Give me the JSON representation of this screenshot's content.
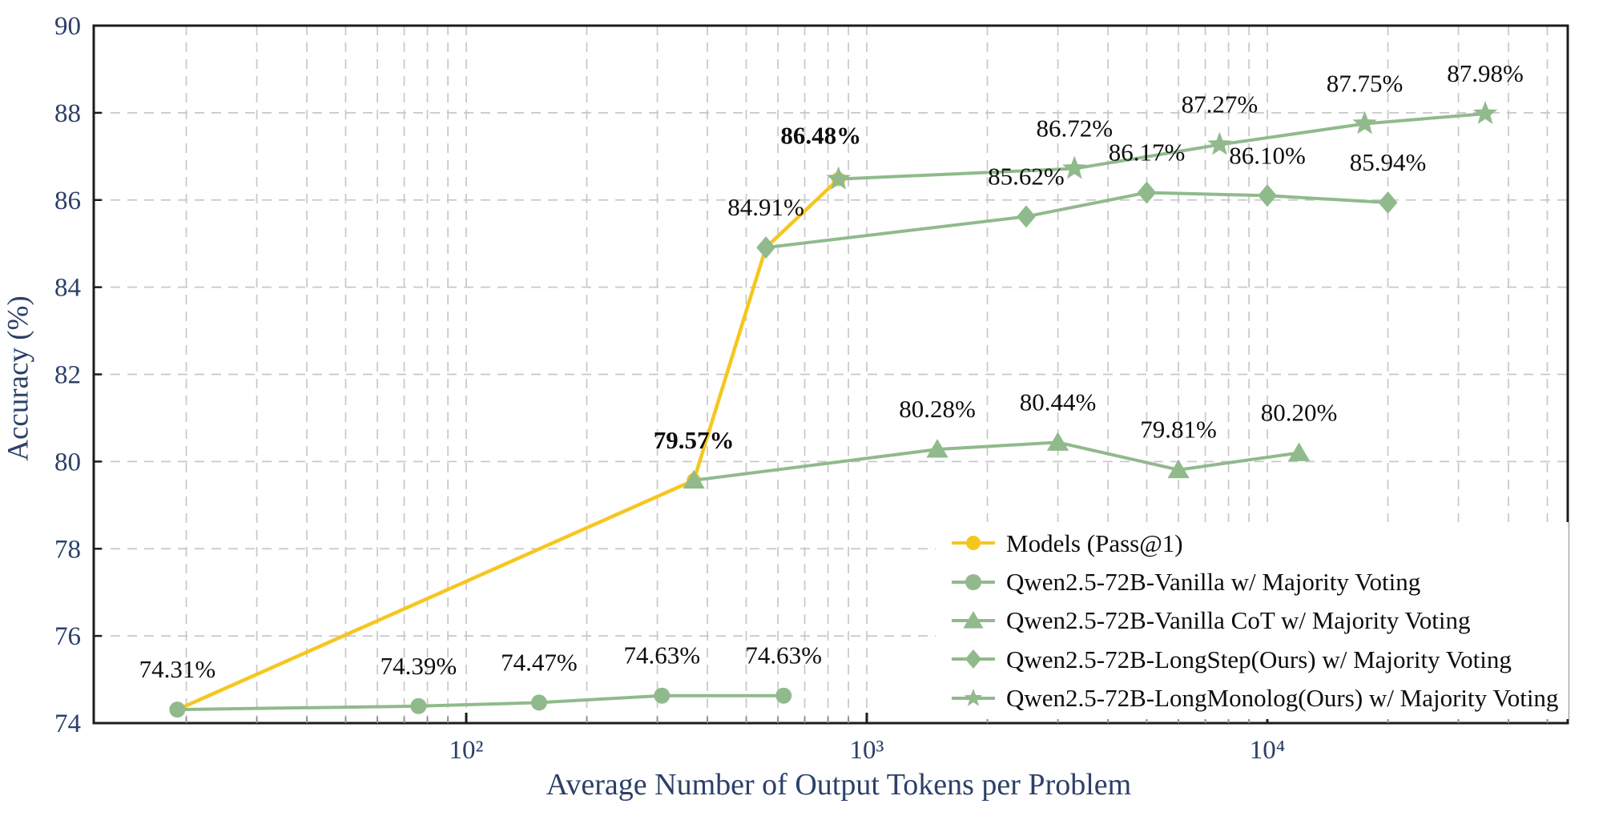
{
  "chart_data": {
    "type": "line",
    "title": "",
    "x_axis": {
      "label": "Average Number of Output Tokens per Problem",
      "scale": "log",
      "log10_range": [
        1.07,
        4.75
      ],
      "major_ticks": [
        {
          "value": 100,
          "label": "10²"
        },
        {
          "value": 1000,
          "label": "10³"
        },
        {
          "value": 10000,
          "label": "10⁴"
        }
      ]
    },
    "y_axis": {
      "label": "Accuracy (%)",
      "range": [
        74,
        90
      ],
      "ticks": [
        74,
        76,
        78,
        80,
        82,
        84,
        86,
        88,
        90
      ],
      "gridlines": [
        76,
        78,
        80,
        82,
        84,
        86,
        88
      ]
    },
    "legend": {
      "position": "lower right"
    },
    "series": [
      {
        "name": "Models (Pass@1)",
        "color": "#F5C71E",
        "marker": "circle",
        "marker_size": 9,
        "show_labels": false,
        "points": [
          {
            "x": 19,
            "y": 74.31
          },
          {
            "x": 370,
            "y": 79.57
          },
          {
            "x": 560,
            "y": 84.91
          },
          {
            "x": 850,
            "y": 86.48
          }
        ]
      },
      {
        "name": "Qwen2.5-72B-Vanilla w/ Majority Voting",
        "color": "#90BA8C",
        "marker": "circle",
        "marker_size": 10,
        "show_labels": true,
        "points": [
          {
            "x": 19,
            "y": 74.31,
            "label": "74.31%"
          },
          {
            "x": 76,
            "y": 74.39,
            "label": "74.39%"
          },
          {
            "x": 152,
            "y": 74.47,
            "label": "74.47%"
          },
          {
            "x": 308,
            "y": 74.63,
            "label": "74.63%"
          },
          {
            "x": 620,
            "y": 74.63,
            "label": "74.63%"
          }
        ]
      },
      {
        "name": "Qwen2.5-72B-Vanilla CoT w/ Majority Voting",
        "color": "#90BA8C",
        "marker": "triangle",
        "marker_size": 13,
        "show_labels": true,
        "points": [
          {
            "x": 370,
            "y": 79.57,
            "label": "79.57%",
            "bold": true
          },
          {
            "x": 1500,
            "y": 80.28,
            "label": "80.28%"
          },
          {
            "x": 3000,
            "y": 80.44,
            "label": "80.44%"
          },
          {
            "x": 6000,
            "y": 79.81,
            "label": "79.81%"
          },
          {
            "x": 12000,
            "y": 80.2,
            "label": "80.20%"
          }
        ]
      },
      {
        "name": "Qwen2.5-72B-LongStep(Ours) w/ Majority Voting",
        "color": "#90BA8C",
        "marker": "diamond",
        "marker_size": 14,
        "show_labels": true,
        "points": [
          {
            "x": 560,
            "y": 84.91,
            "label": "84.91%"
          },
          {
            "x": 2500,
            "y": 85.62,
            "label": "85.62%"
          },
          {
            "x": 5000,
            "y": 86.17,
            "label": "86.17%"
          },
          {
            "x": 10000,
            "y": 86.1,
            "label": "86.10%"
          },
          {
            "x": 20000,
            "y": 85.94,
            "label": "85.94%"
          }
        ]
      },
      {
        "name": "Qwen2.5-72B-LongMonolog(Ours) w/ Majority Voting",
        "color": "#90BA8C",
        "marker": "star",
        "marker_size": 16,
        "show_labels": true,
        "points": [
          {
            "x": 850,
            "y": 86.48,
            "label": "86.48%",
            "bold": true,
            "dx": -22,
            "dy": -4
          },
          {
            "x": 3300,
            "y": 86.72,
            "label": "86.72%"
          },
          {
            "x": 7600,
            "y": 87.27,
            "label": "87.27%"
          },
          {
            "x": 17500,
            "y": 87.75,
            "label": "87.75%"
          },
          {
            "x": 35000,
            "y": 87.98,
            "label": "87.98%"
          }
        ]
      }
    ]
  },
  "colors": {
    "accent_green": "#90BA8C",
    "accent_yellow": "#F5C71E",
    "axis_text": "#2C4068",
    "grid": "#C8C8C8",
    "point_label": "#0D0D0D",
    "spine": "#1C1C1C",
    "background": "#FFFFFF"
  }
}
